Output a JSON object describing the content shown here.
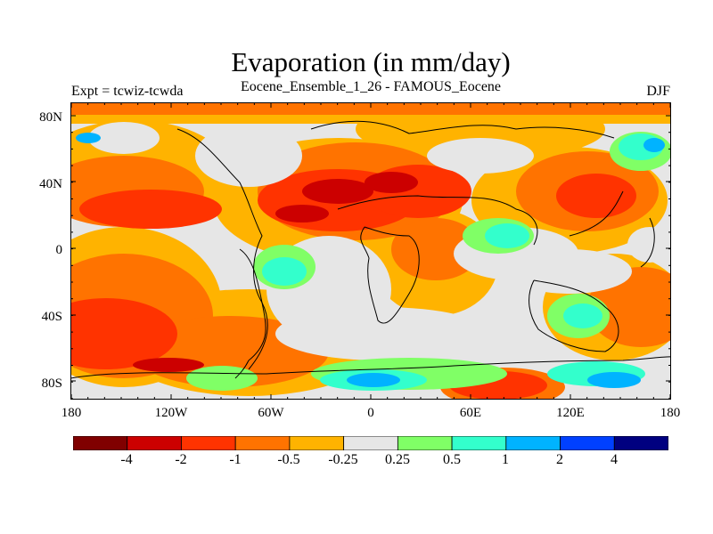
{
  "header": {
    "title": "Evaporation (in mm/day)",
    "subtitle": "Eocene_Ensemble_1_26 - FAMOUS_Eocene",
    "left_label": "Expt = tcwiz-tcwda",
    "right_label": "DJF"
  },
  "map": {
    "lat_ticks": [
      "80N",
      "40N",
      "0",
      "40S",
      "80S"
    ],
    "lon_ticks": [
      "180",
      "120W",
      "60W",
      "0",
      "60E",
      "120E",
      "180"
    ]
  },
  "colorbar": {
    "colors": [
      "#800000",
      "#cc0000",
      "#ff3300",
      "#ff7300",
      "#ffb300",
      "#e6e6e6",
      "#80ff66",
      "#33ffcc",
      "#00b3ff",
      "#0040ff",
      "#000080"
    ],
    "labels": [
      "-4",
      "-2",
      "-1",
      "-0.5",
      "-0.25",
      "0.25",
      "0.5",
      "1",
      "2",
      "4"
    ]
  }
}
